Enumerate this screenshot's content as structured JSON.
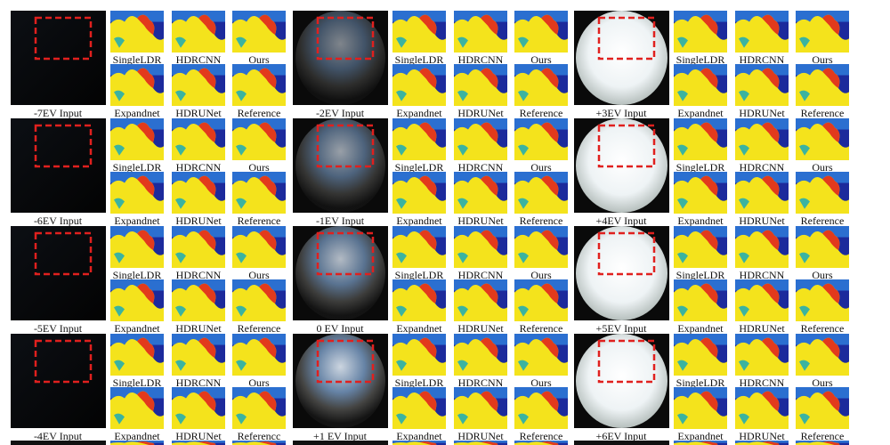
{
  "rows": [
    {
      "groups": [
        {
          "input_label": "-7EV Input",
          "method_labels": [
            "SingleLDR",
            "HDRCNN",
            "Ours",
            "Expandnet",
            "HDRUNet",
            "Reference"
          ]
        },
        {
          "input_label": "-2EV Input",
          "method_labels": [
            "SingleLDR",
            "HDRCNN",
            "Ours",
            "Expandnet",
            "HDRUNet",
            "Reference"
          ]
        },
        {
          "input_label": "+3EV Input",
          "method_labels": [
            "SingleLDR",
            "HDRCNN",
            "Ours",
            "Expandnet",
            "HDRUNet",
            "Reference"
          ]
        }
      ]
    },
    {
      "groups": [
        {
          "input_label": "-6EV Input",
          "method_labels": [
            "SingleLDR",
            "HDRCNN",
            "Ours",
            "Expandnet",
            "HDRUNet",
            "Reference"
          ]
        },
        {
          "input_label": "-1EV Input",
          "method_labels": [
            "SingleLDR",
            "HDRCNN",
            "Ours",
            "Expandnet",
            "HDRUNet",
            "Reference"
          ]
        },
        {
          "input_label": "+4EV Input",
          "method_labels": [
            "SingleLDR",
            "HDRCNN",
            "Ours",
            "Expandnet",
            "HDRUNet",
            "Reference"
          ]
        }
      ]
    },
    {
      "groups": [
        {
          "input_label": "-5EV Input",
          "method_labels": [
            "SingleLDR",
            "HDRCNN",
            "Ours",
            "Expandnet",
            "HDRUNet",
            "Reference"
          ]
        },
        {
          "input_label": "0 EV Input",
          "method_labels": [
            "SingleLDR",
            "HDRCNN",
            "Ours",
            "Expandnet",
            "HDRUNet",
            "Reference"
          ]
        },
        {
          "input_label": "+5EV Input",
          "method_labels": [
            "SingleLDR",
            "HDRCNN",
            "Ours",
            "Expandnet",
            "HDRUNet",
            "Reference"
          ]
        }
      ]
    },
    {
      "groups": [
        {
          "input_label": "-4EV Input",
          "method_labels": [
            "SingleLDR",
            "HDRCNN",
            "Ours",
            "Expandnet",
            "HDRUNet",
            "Referencc"
          ]
        },
        {
          "input_label": "+1 EV Input",
          "method_labels": [
            "SingleLDR",
            "HDRCNN",
            "Ours",
            "Expandnet",
            "HDRUNet",
            "Reference"
          ]
        },
        {
          "input_label": "+6EV Input",
          "method_labels": [
            "SingleLDR",
            "HDRCNN",
            "Ours",
            "Expandnet",
            "HDRUNet",
            "Reference"
          ]
        }
      ]
    }
  ]
}
